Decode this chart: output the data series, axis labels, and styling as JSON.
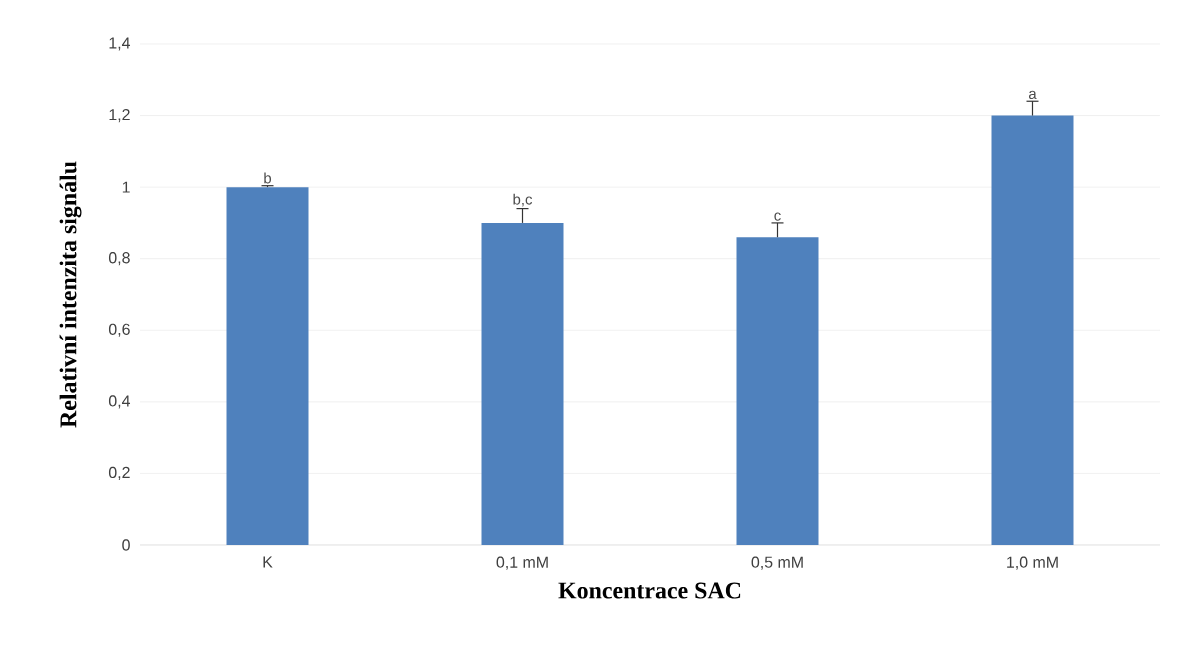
{
  "chart_data": {
    "type": "bar",
    "xlabel": "Koncentrace SAC",
    "ylabel": "Relativní intenzita  signálu",
    "categories": [
      "K",
      "0,1 mM",
      "0,5 mM",
      "1,0 mM"
    ],
    "values": [
      1.0,
      0.9,
      0.86,
      1.2
    ],
    "errors": [
      [
        1.0,
        1.004
      ],
      [
        0.9,
        0.94
      ],
      [
        0.86,
        0.9
      ],
      [
        1.2,
        1.24
      ]
    ],
    "color": "#4f81bd",
    "grid": "y",
    "ylim": [
      0,
      1.4
    ],
    "yticks": [
      {
        "value": 0,
        "label": "0"
      },
      {
        "value": 0.2,
        "label": "0,2"
      },
      {
        "value": 0.4,
        "label": "0,4"
      },
      {
        "value": 0.6,
        "label": "0,6"
      },
      {
        "value": 0.8,
        "label": "0,8"
      },
      {
        "value": 1,
        "label": "1"
      },
      {
        "value": 1.2,
        "label": "1,2"
      },
      {
        "value": 1.4,
        "label": "1,4"
      }
    ],
    "annotations": [
      "b",
      "b,c",
      "c",
      "a"
    ]
  }
}
